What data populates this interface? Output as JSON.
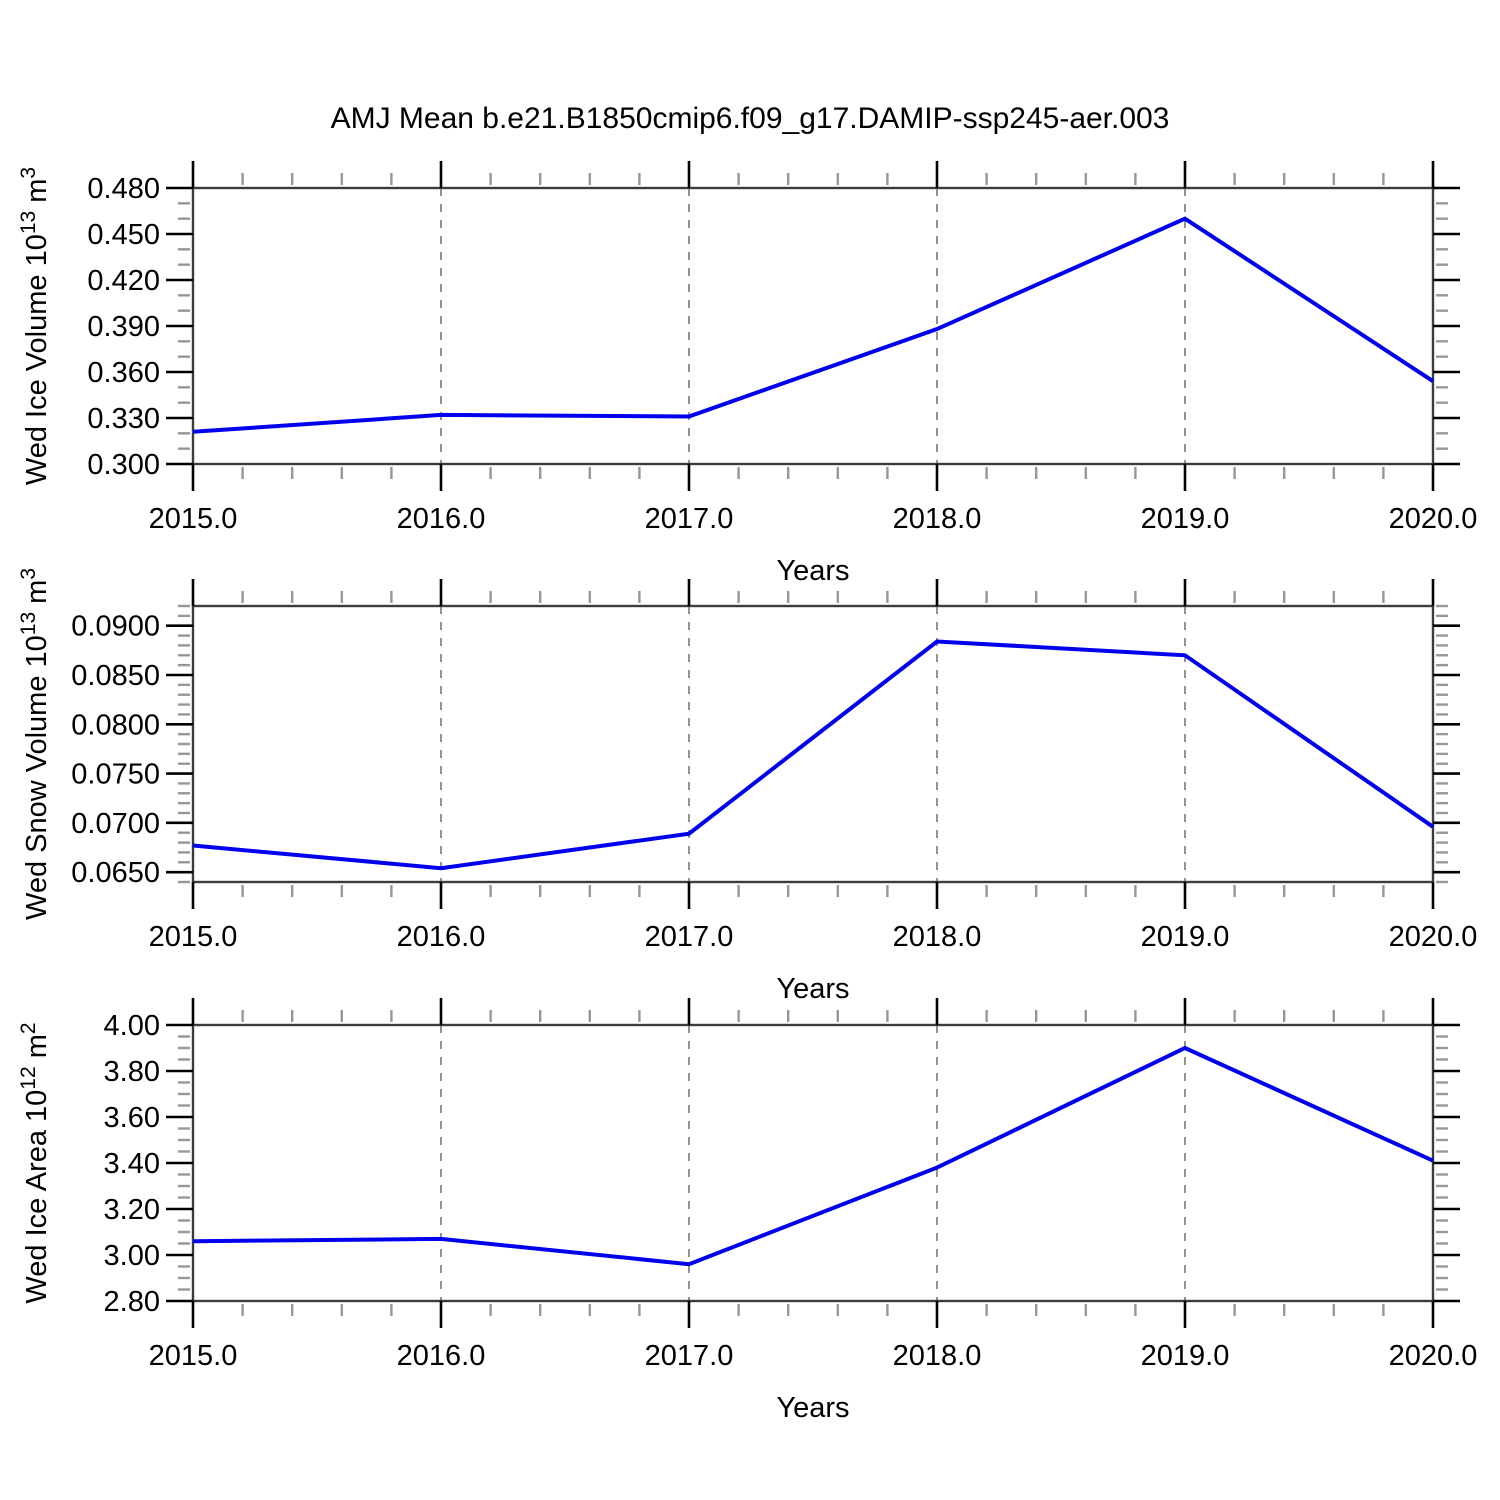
{
  "title": "AMJ Mean b.e21.B1850cmip6.f09_g17.DAMIP-ssp245-aer.003",
  "line_color": "#0000ee",
  "grid_color": "#777777",
  "axis_color": "#3c3c3c",
  "major_tick_color": "#000000",
  "minor_tick_color": "#979797",
  "chart_data": [
    {
      "type": "line",
      "panel": "wed-ice-volume",
      "title": "",
      "xlabel": "Years",
      "ylabel": "Wed Ice Volume 10^13 m^3",
      "ylabel_segments": [
        [
          "Wed Ice Volume 10",
          false
        ],
        [
          "13",
          true
        ],
        [
          " m",
          false
        ],
        [
          "3",
          true
        ]
      ],
      "x": [
        2015,
        2016,
        2017,
        2018,
        2019,
        2020
      ],
      "values": [
        0.321,
        0.332,
        0.331,
        0.388,
        0.46,
        0.354
      ],
      "xlim": [
        2015,
        2020
      ],
      "ylim": [
        0.3,
        0.48
      ],
      "x_major_ticks": [
        2015,
        2016,
        2017,
        2018,
        2019,
        2020
      ],
      "x_tick_labels": [
        "2015.0",
        "2016.0",
        "2017.0",
        "2018.0",
        "2019.0",
        "2020.0"
      ],
      "x_minor_step": 0.2,
      "yticks": [
        0.3,
        0.33,
        0.36,
        0.39,
        0.42,
        0.45,
        0.48
      ],
      "ytick_labels": [
        "0.300",
        "0.330",
        "0.360",
        "0.390",
        "0.420",
        "0.450",
        "0.480"
      ],
      "y_minor_step": 0.01,
      "grid_x_dashed": [
        2016,
        2017,
        2018,
        2019
      ],
      "legend": "none",
      "grid": "vertical-dashed-only"
    },
    {
      "type": "line",
      "panel": "wed-snow-volume",
      "title": "",
      "xlabel": "Years",
      "ylabel": "Wed Snow Volume 10^13 m^3",
      "ylabel_segments": [
        [
          "Wed Snow Volume 10",
          false
        ],
        [
          "13",
          true
        ],
        [
          " m",
          false
        ],
        [
          "3",
          true
        ]
      ],
      "x": [
        2015,
        2016,
        2017,
        2018,
        2019,
        2020
      ],
      "values": [
        0.0677,
        0.0654,
        0.0689,
        0.0884,
        0.087,
        0.0696
      ],
      "xlim": [
        2015,
        2020
      ],
      "ylim": [
        0.064,
        0.092
      ],
      "x_major_ticks": [
        2015,
        2016,
        2017,
        2018,
        2019,
        2020
      ],
      "x_tick_labels": [
        "2015.0",
        "2016.0",
        "2017.0",
        "2018.0",
        "2019.0",
        "2020.0"
      ],
      "x_minor_step": 0.2,
      "yticks": [
        0.065,
        0.07,
        0.075,
        0.08,
        0.085,
        0.09
      ],
      "ytick_labels": [
        "0.0650",
        "0.0700",
        "0.0750",
        "0.0800",
        "0.0850",
        "0.0900"
      ],
      "y_minor_step": 0.001,
      "grid_x_dashed": [
        2016,
        2017,
        2018,
        2019
      ],
      "legend": "none",
      "grid": "vertical-dashed-only"
    },
    {
      "type": "line",
      "panel": "wed-ice-area",
      "title": "",
      "xlabel": "Years",
      "ylabel": "Wed Ice Area 10^12 m^2",
      "ylabel_segments": [
        [
          "Wed Ice Area 10",
          false
        ],
        [
          "12",
          true
        ],
        [
          " m",
          false
        ],
        [
          "2",
          true
        ]
      ],
      "x": [
        2015,
        2016,
        2017,
        2018,
        2019,
        2020
      ],
      "values": [
        3.06,
        3.07,
        2.96,
        3.38,
        3.9,
        3.41
      ],
      "xlim": [
        2015,
        2020
      ],
      "ylim": [
        2.8,
        4.0
      ],
      "x_major_ticks": [
        2015,
        2016,
        2017,
        2018,
        2019,
        2020
      ],
      "x_tick_labels": [
        "2015.0",
        "2016.0",
        "2017.0",
        "2018.0",
        "2019.0",
        "2020.0"
      ],
      "x_minor_step": 0.2,
      "yticks": [
        2.8,
        3.0,
        3.2,
        3.4,
        3.6,
        3.8,
        4.0
      ],
      "ytick_labels": [
        "2.80",
        "3.00",
        "3.20",
        "3.40",
        "3.60",
        "3.80",
        "4.00"
      ],
      "y_minor_step": 0.05,
      "grid_x_dashed": [
        2016,
        2017,
        2018,
        2019
      ],
      "legend": "none",
      "grid": "vertical-dashed-only"
    }
  ]
}
